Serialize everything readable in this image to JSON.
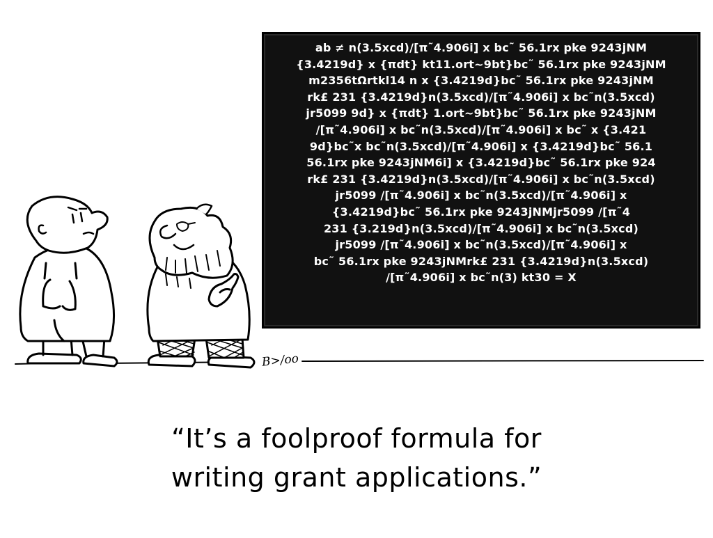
{
  "board": {
    "lines": [
      "ab ≠ n(3.5xcd)/[π˜4.906i] x bc˜ 56.1rx pke 9243jNM",
      "{3.4219d} x {πdt} kt11.ort~9bt}bc˜ 56.1rx pke 9243jNM",
      "m2356tΩrtkl14 n x {3.4219d}bc˜ 56.1rx pke 9243jNM",
      "rk£ 231 {3.4219d}n(3.5xcd)/[π˜4.906i] x bc˜n(3.5xcd)",
      "jr5099 9d} x {πdt} 1.ort~9bt}bc˜ 56.1rx pke 9243jNM",
      "/[π˜4.906i] x bc˜n(3.5xcd)/[π˜4.906i] x bc˜ x {3.421",
      "9d}bc˜x bc˜n(3.5xcd)/[π˜4.906i] x {3.4219d}bc˜ 56.1",
      "56.1rx pke 9243jNM6i] x {3.4219d}bc˜ 56.1rx pke 924",
      "rk£ 231 {3.4219d}n(3.5xcd)/[π˜4.906i] x bc˜n(3.5xcd)",
      "jr5099 /[π˜4.906i] x bc˜n(3.5xcd)/[π˜4.906i] x",
      "{3.4219d}bc˜ 56.1rx pke 9243jNMjr5099 /[π˜4",
      "231 {3.219d}n(3.5xcd)/[π˜4.906i] x bc˜n(3.5xcd)",
      "jr5099 /[π˜4.906i] x bc˜n(3.5xcd)/[π˜4.906i] x",
      "bc˜ 56.1rx pke 9243jNMrk£ 231 {3.4219d}n(3.5xcd)",
      "/[π˜4.906i] x bc˜n(3) kt30 = X"
    ]
  },
  "signature": "B>/oo",
  "caption": {
    "line1": "“It’s a foolproof formula for",
    "line2": "writing grant applications.”"
  },
  "colors": {
    "board_bg": "#111111",
    "board_text": "#ffffff",
    "ink": "#000000",
    "paper": "#ffffff"
  }
}
